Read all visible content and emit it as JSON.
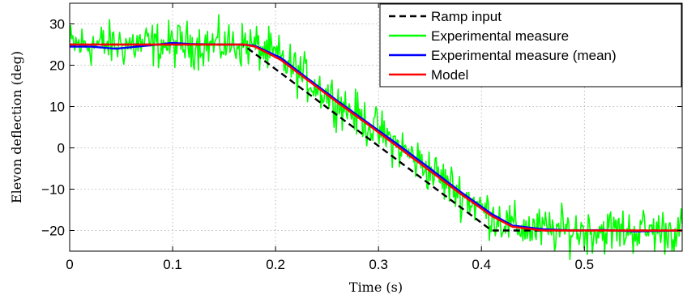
{
  "chart_data": {
    "type": "line",
    "xlabel": "Time (s)",
    "ylabel": "Elevon deflection (deg)",
    "xlim": [
      0,
      0.595
    ],
    "ylim": [
      -25,
      35
    ],
    "xticks": [
      0,
      0.1,
      0.2,
      0.3,
      0.4,
      0.5
    ],
    "xtick_labels": [
      "0",
      "0.1",
      "0.2",
      "0.3",
      "0.4",
      "0.5"
    ],
    "yticks": [
      -20,
      -10,
      0,
      10,
      20,
      30
    ],
    "ytick_labels": [
      "−20",
      "−10",
      "0",
      "10",
      "20",
      "30"
    ],
    "grid": true,
    "legend_position": "top-right",
    "series": [
      {
        "name": "Ramp input",
        "color": "#000000",
        "style": "dashed",
        "x": [
          0,
          0.168,
          0.41,
          0.595
        ],
        "y": [
          25,
          25,
          -20,
          -20
        ]
      },
      {
        "name": "Experimental measure",
        "color": "#00ff00",
        "style": "noise",
        "x": [
          0,
          0.17,
          0.18,
          0.205,
          0.23,
          0.26,
          0.29,
          0.32,
          0.35,
          0.38,
          0.41,
          0.43,
          0.46,
          0.49,
          0.595
        ],
        "y": [
          25,
          25,
          24.6,
          21.5,
          16.8,
          11.2,
          5.8,
          0.2,
          -5.4,
          -11.1,
          -16.3,
          -19.0,
          -20.0,
          -20.0,
          -20.0
        ],
        "noise_amplitude_deg": 3
      },
      {
        "name": "Experimental measure (mean)",
        "color": "#0000ff",
        "style": "solid",
        "x": [
          0,
          0.02,
          0.045,
          0.07,
          0.1,
          0.12,
          0.15,
          0.17,
          0.18,
          0.205,
          0.23,
          0.26,
          0.29,
          0.32,
          0.35,
          0.38,
          0.41,
          0.43,
          0.46,
          0.49,
          0.52,
          0.55,
          0.595
        ],
        "y": [
          24.5,
          24.5,
          24.0,
          24.6,
          25.4,
          25.1,
          25.0,
          25.0,
          24.7,
          21.8,
          17.0,
          11.4,
          6.0,
          0.6,
          -5.0,
          -10.7,
          -16.0,
          -18.8,
          -19.7,
          -20.0,
          -19.9,
          -20.2,
          -20.0
        ]
      },
      {
        "name": "Model",
        "color": "#ff0000",
        "style": "solid",
        "x": [
          0,
          0.17,
          0.18,
          0.205,
          0.23,
          0.26,
          0.29,
          0.32,
          0.35,
          0.38,
          0.41,
          0.43,
          0.46,
          0.49,
          0.595
        ],
        "y": [
          25,
          25,
          24.5,
          21.3,
          16.6,
          11.0,
          5.6,
          0.0,
          -5.6,
          -11.2,
          -16.5,
          -19.1,
          -20.0,
          -20.0,
          -20.0
        ]
      }
    ]
  }
}
